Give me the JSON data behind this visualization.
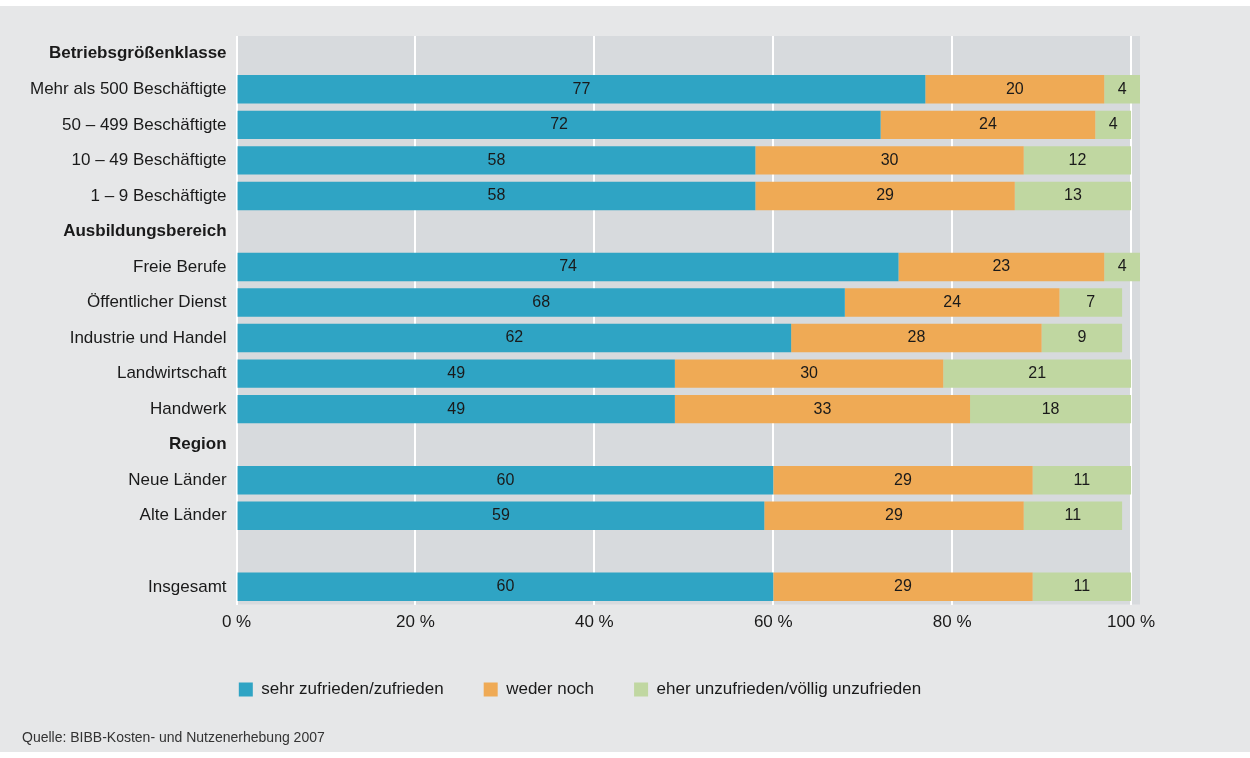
{
  "chart_data": {
    "type": "bar",
    "orientation": "horizontal",
    "stacked": true,
    "categories": [
      "Betriebsgrößenklasse",
      "Mehr als 500 Beschäftigte",
      "50 – 499 Beschäftigte",
      "10 – 49 Beschäftigte",
      "1 – 9 Beschäftigte",
      "Ausbildungsbereich",
      "Freie Berufe",
      "Öffentlicher Dienst",
      "Industrie und Handel",
      "Landwirtschaft",
      "Handwerk",
      "Region",
      "Neue Länder",
      "Alte Länder",
      null,
      "Insgesamt"
    ],
    "series": [
      {
        "name": "sehr zufrieden/zufrieden",
        "color": "#2fa4c4",
        "values": [
          null,
          77,
          72,
          58,
          58,
          null,
          74,
          68,
          62,
          49,
          49,
          null,
          60,
          59,
          null,
          60
        ]
      },
      {
        "name": "weder noch",
        "color": "#efaa55",
        "values": [
          null,
          20,
          24,
          30,
          29,
          null,
          23,
          24,
          28,
          30,
          33,
          null,
          29,
          29,
          null,
          29
        ]
      },
      {
        "name": "eher unzufrieden/völlig unzufrieden",
        "color": "#c0d7a1",
        "values": [
          null,
          4,
          4,
          12,
          13,
          null,
          4,
          7,
          9,
          21,
          18,
          null,
          11,
          11,
          null,
          11
        ]
      }
    ],
    "xlim": [
      0,
      101
    ],
    "xticks": [
      {
        "value": 0,
        "label": "0 %"
      },
      {
        "value": 20,
        "label": "20 %"
      },
      {
        "value": 40,
        "label": "40 %"
      },
      {
        "value": 60,
        "label": "60 %"
      },
      {
        "value": 80,
        "label": "80 %"
      },
      {
        "value": 100,
        "label": "100 %"
      }
    ],
    "grid": "x",
    "legend": "bottom",
    "data_labels": true,
    "annotations": [
      "Quelle: BIBB-Kosten- und Nutzenerhebung 2007"
    ]
  }
}
